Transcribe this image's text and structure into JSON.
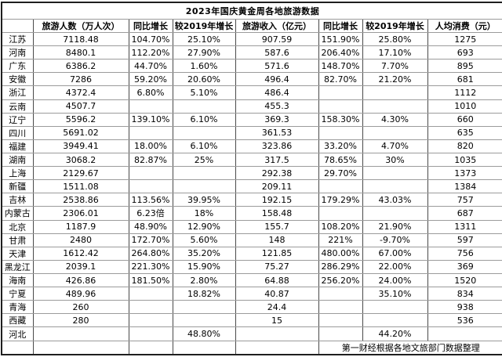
{
  "title": "2023年国庆黄金周各地旅游数据",
  "table": {
    "headers": [
      "",
      "旅游人数（万人次）",
      "同比增长",
      "较2019年增长",
      "旅游收入（亿元）",
      "同比增长",
      "较2019年增长",
      "人均消费（元）"
    ],
    "rows": [
      {
        "province": "江苏",
        "visitors": "7118.48",
        "yoy_growth": "104.70%",
        "vs_2019": "25.10%",
        "revenue": "907.59",
        "revenue_yoy": "151.90%",
        "revenue_vs_2019": "25.80%",
        "per_capita": "1275"
      },
      {
        "province": "河南",
        "visitors": "8480.1",
        "yoy_growth": "112.20%",
        "vs_2019": "27.90%",
        "revenue": "587.6",
        "revenue_yoy": "206.40%",
        "revenue_vs_2019": "17.10%",
        "per_capita": "693"
      },
      {
        "province": "广东",
        "visitors": "6386.2",
        "yoy_growth": "44.70%",
        "vs_2019": "1.60%",
        "revenue": "571.6",
        "revenue_yoy": "148.70%",
        "revenue_vs_2019": "7.70%",
        "per_capita": "895"
      },
      {
        "province": "安徽",
        "visitors": "7286",
        "yoy_growth": "59.20%",
        "vs_2019": "20.60%",
        "revenue": "496.4",
        "revenue_yoy": "82.70%",
        "revenue_vs_2019": "21.20%",
        "per_capita": "681"
      },
      {
        "province": "浙江",
        "visitors": "4372.4",
        "yoy_growth": "6.80%",
        "vs_2019": "5.10%",
        "revenue": "486.4",
        "revenue_yoy": "",
        "revenue_vs_2019": "",
        "per_capita": "1112"
      },
      {
        "province": "云南",
        "visitors": "4507.7",
        "yoy_growth": "",
        "vs_2019": "",
        "revenue": "455.3",
        "revenue_yoy": "",
        "revenue_vs_2019": "",
        "per_capita": "1010"
      },
      {
        "province": "辽宁",
        "visitors": "5596.2",
        "yoy_growth": "139.10%",
        "vs_2019": "6.10%",
        "revenue": "369.3",
        "revenue_yoy": "158.30%",
        "revenue_vs_2019": "4.30%",
        "per_capita": "660"
      },
      {
        "province": "四川",
        "visitors": "5691.02",
        "yoy_growth": "",
        "vs_2019": "",
        "revenue": "361.53",
        "revenue_yoy": "",
        "revenue_vs_2019": "",
        "per_capita": "635"
      },
      {
        "province": "福建",
        "visitors": "3949.41",
        "yoy_growth": "18.00%",
        "vs_2019": "6.10%",
        "revenue": "323.86",
        "revenue_yoy": "33.20%",
        "revenue_vs_2019": "4.70%",
        "per_capita": "820"
      },
      {
        "province": "湖南",
        "visitors": "3068.2",
        "yoy_growth": "82.87%",
        "vs_2019": "25%",
        "revenue": "317.5",
        "revenue_yoy": "78.65%",
        "revenue_vs_2019": "30%",
        "per_capita": "1035"
      },
      {
        "province": "上海",
        "visitors": "2129.67",
        "yoy_growth": "",
        "vs_2019": "",
        "revenue": "292.38",
        "revenue_yoy": "29.70%",
        "revenue_vs_2019": "",
        "per_capita": "1373"
      },
      {
        "province": "新疆",
        "visitors": "1511.08",
        "yoy_growth": "",
        "vs_2019": "",
        "revenue": "209.11",
        "revenue_yoy": "",
        "revenue_vs_2019": "",
        "per_capita": "1384"
      },
      {
        "province": "吉林",
        "visitors": "2538.86",
        "yoy_growth": "113.56%",
        "vs_2019": "39.95%",
        "revenue": "192.15",
        "revenue_yoy": "179.29%",
        "revenue_vs_2019": "43.03%",
        "per_capita": "757"
      },
      {
        "province": "内蒙古",
        "visitors": "2306.01",
        "yoy_growth": "6.23倍",
        "vs_2019": "18%",
        "revenue": "158.48",
        "revenue_yoy": "",
        "revenue_vs_2019": "",
        "per_capita": "687"
      },
      {
        "province": "北京",
        "visitors": "1187.9",
        "yoy_growth": "48.90%",
        "vs_2019": "12.90%",
        "revenue": "155.7",
        "revenue_yoy": "108.20%",
        "revenue_vs_2019": "21.90%",
        "per_capita": "1311"
      },
      {
        "province": "甘肃",
        "visitors": "2480",
        "yoy_growth": "172.70%",
        "vs_2019": "5.60%",
        "revenue": "148",
        "revenue_yoy": "221%",
        "revenue_vs_2019": "-9.70%",
        "per_capita": "597"
      },
      {
        "province": "天津",
        "visitors": "1612.42",
        "yoy_growth": "264.80%",
        "vs_2019": "35.20%",
        "revenue": "121.85",
        "revenue_yoy": "480.00%",
        "revenue_vs_2019": "67.00%",
        "per_capita": "756"
      },
      {
        "province": "黑龙江",
        "visitors": "2039.1",
        "yoy_growth": "221.30%",
        "vs_2019": "15.90%",
        "revenue": "75.27",
        "revenue_yoy": "286.29%",
        "revenue_vs_2019": "22.00%",
        "per_capita": "369"
      },
      {
        "province": "海南",
        "visitors": "426.86",
        "yoy_growth": "181.50%",
        "vs_2019": "2.80%",
        "revenue": "64.88",
        "revenue_yoy": "256.20%",
        "revenue_vs_2019": "24.00%",
        "per_capita": "1520"
      },
      {
        "province": "宁夏",
        "visitors": "489.96",
        "yoy_growth": "",
        "vs_2019": "18.82%",
        "revenue": "40.87",
        "revenue_yoy": "",
        "revenue_vs_2019": "35.10%",
        "per_capita": "834"
      },
      {
        "province": "青海",
        "visitors": "260",
        "yoy_growth": "",
        "vs_2019": "",
        "revenue": "24.4",
        "revenue_yoy": "",
        "revenue_vs_2019": "",
        "per_capita": "938"
      },
      {
        "province": "西藏",
        "visitors": "280",
        "yoy_growth": "",
        "vs_2019": "",
        "revenue": "15",
        "revenue_yoy": "",
        "revenue_vs_2019": "",
        "per_capita": "536"
      },
      {
        "province": "河北",
        "visitors": "",
        "yoy_growth": "",
        "vs_2019": "48.80%",
        "revenue": "",
        "revenue_yoy": "",
        "revenue_vs_2019": "44.20%",
        "per_capita": ""
      }
    ],
    "source_note": "第一财经根据各地文旅部门数据整理"
  },
  "colors": {
    "active_cell_border": "#107c41",
    "grid_vertical": "#4a4a4a",
    "grid_horizontal": "#9b9b9b",
    "outer_border": "#1f1f1f"
  }
}
